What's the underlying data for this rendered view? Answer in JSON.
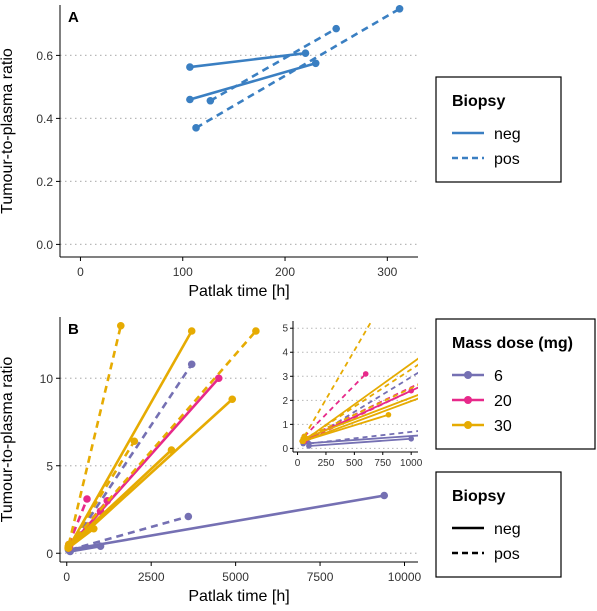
{
  "chart_data": [
    {
      "panel": "A",
      "type": "line",
      "xlabel": "Patlak time [h]",
      "ylabel": "Tumour-to-plasma ratio",
      "xlim": [
        -20,
        330
      ],
      "ylim": [
        -0.04,
        0.76
      ],
      "xticks": [
        0,
        100,
        200,
        300
      ],
      "yticks": [
        "0.0",
        "0.2",
        "0.4",
        "0.6"
      ],
      "grid": "horizontal-dotted",
      "series": [
        {
          "biopsy": "neg",
          "style": "solid",
          "color": "#3a7fc2",
          "points": [
            [
              107,
              0.563
            ],
            [
              220,
              0.607
            ]
          ]
        },
        {
          "biopsy": "neg",
          "style": "solid",
          "color": "#3a7fc2",
          "points": [
            [
              107,
              0.46
            ],
            [
              230,
              0.575
            ]
          ]
        },
        {
          "biopsy": "pos",
          "style": "dashed",
          "color": "#3a7fc2",
          "points": [
            [
              127,
              0.456
            ],
            [
              250,
              0.685
            ]
          ]
        },
        {
          "biopsy": "pos",
          "style": "dashed",
          "color": "#3a7fc2",
          "points": [
            [
              113,
              0.37
            ],
            [
              312,
              0.748
            ]
          ]
        }
      ],
      "legend": {
        "placement": "right",
        "title": "Biopsy",
        "entries": [
          {
            "label": "neg",
            "style": "solid",
            "color": "#3a7fc2"
          },
          {
            "label": "pos",
            "style": "dashed",
            "color": "#3a7fc2"
          }
        ]
      }
    },
    {
      "panel": "B",
      "type": "line",
      "xlabel": "Patlak time [h]",
      "ylabel": "Tumour-to-plasma ratio",
      "xlim": [
        -200,
        10400
      ],
      "ylim": [
        -0.5,
        13.5
      ],
      "xticks": [
        0,
        2500,
        5000,
        7500,
        10000
      ],
      "yticks": [
        0,
        5,
        10
      ],
      "grid": "horizontal-dotted",
      "series": [
        {
          "dose": "6",
          "biopsy": "neg",
          "style": "solid",
          "color": "#7570b3",
          "points": [
            [
              50,
              0.2
            ],
            [
              9400,
              3.3
            ]
          ]
        },
        {
          "dose": "6",
          "biopsy": "neg",
          "style": "solid",
          "color": "#7570b3",
          "points": [
            [
              100,
              0.1
            ],
            [
              1000,
              0.4
            ]
          ]
        },
        {
          "dose": "6",
          "biopsy": "pos",
          "style": "dashed",
          "color": "#7570b3",
          "points": [
            [
              100,
              0.2
            ],
            [
              3600,
              2.1
            ]
          ]
        },
        {
          "dose": "6",
          "biopsy": "pos",
          "style": "dashed",
          "color": "#7570b3",
          "points": [
            [
              80,
              0.3
            ],
            [
              3700,
              10.8
            ]
          ]
        },
        {
          "dose": "20",
          "biopsy": "neg",
          "style": "solid",
          "color": "#e7298a",
          "points": [
            [
              80,
              0.4
            ],
            [
              4500,
              10.0
            ]
          ]
        },
        {
          "dose": "20",
          "biopsy": "pos",
          "style": "dashed",
          "color": "#e7298a",
          "points": [
            [
              60,
              0.5
            ],
            [
              600,
              3.1
            ]
          ]
        },
        {
          "dose": "20",
          "biopsy": "pos",
          "style": "dashed",
          "color": "#e7298a",
          "points": [
            [
              60,
              0.3
            ],
            [
              1000,
              2.4
            ]
          ]
        },
        {
          "dose": "20",
          "biopsy": "pos",
          "style": "dashed",
          "color": "#e7298a",
          "points": [
            [
              60,
              0.4
            ],
            [
              1200,
              3.0
            ]
          ]
        },
        {
          "dose": "30",
          "biopsy": "neg",
          "style": "solid",
          "color": "#e6ab02",
          "points": [
            [
              50,
              0.3
            ],
            [
              3700,
              12.7
            ]
          ]
        },
        {
          "dose": "30",
          "biopsy": "neg",
          "style": "solid",
          "color": "#e6ab02",
          "points": [
            [
              50,
              0.3
            ],
            [
              4900,
              8.8
            ]
          ]
        },
        {
          "dose": "30",
          "biopsy": "neg",
          "style": "solid",
          "color": "#e6ab02",
          "points": [
            [
              50,
              0.4
            ],
            [
              3100,
              5.9
            ]
          ]
        },
        {
          "dose": "30",
          "biopsy": "neg",
          "style": "solid",
          "color": "#e6ab02",
          "points": [
            [
              50,
              0.3
            ],
            [
              800,
              1.4
            ]
          ]
        },
        {
          "dose": "30",
          "biopsy": "pos",
          "style": "dashed",
          "color": "#e6ab02",
          "points": [
            [
              60,
              0.5
            ],
            [
              1600,
              13.0
            ]
          ]
        },
        {
          "dose": "30",
          "biopsy": "pos",
          "style": "dashed",
          "color": "#e6ab02",
          "points": [
            [
              50,
              0.4
            ],
            [
              5600,
              12.7
            ]
          ]
        },
        {
          "dose": "30",
          "biopsy": "pos",
          "style": "dashed",
          "color": "#e6ab02",
          "points": [
            [
              40,
              0.3
            ],
            [
              2000,
              6.4
            ]
          ]
        }
      ],
      "inset": {
        "xlim": [
          -40,
          1060
        ],
        "ylim": [
          -0.15,
          5.3
        ],
        "xticks": [
          0,
          250,
          500,
          750,
          1000
        ],
        "yticks": [
          0,
          1,
          2,
          3,
          4,
          5
        ]
      },
      "legends": [
        {
          "title": "Mass dose (mg)",
          "entries": [
            {
              "label": "6",
              "color": "#7570b3"
            },
            {
              "label": "20",
              "color": "#e7298a"
            },
            {
              "label": "30",
              "color": "#e6ab02"
            }
          ]
        },
        {
          "title": "Biopsy",
          "entries": [
            {
              "label": "neg",
              "style": "solid"
            },
            {
              "label": "pos",
              "style": "dashed"
            }
          ]
        }
      ]
    }
  ]
}
